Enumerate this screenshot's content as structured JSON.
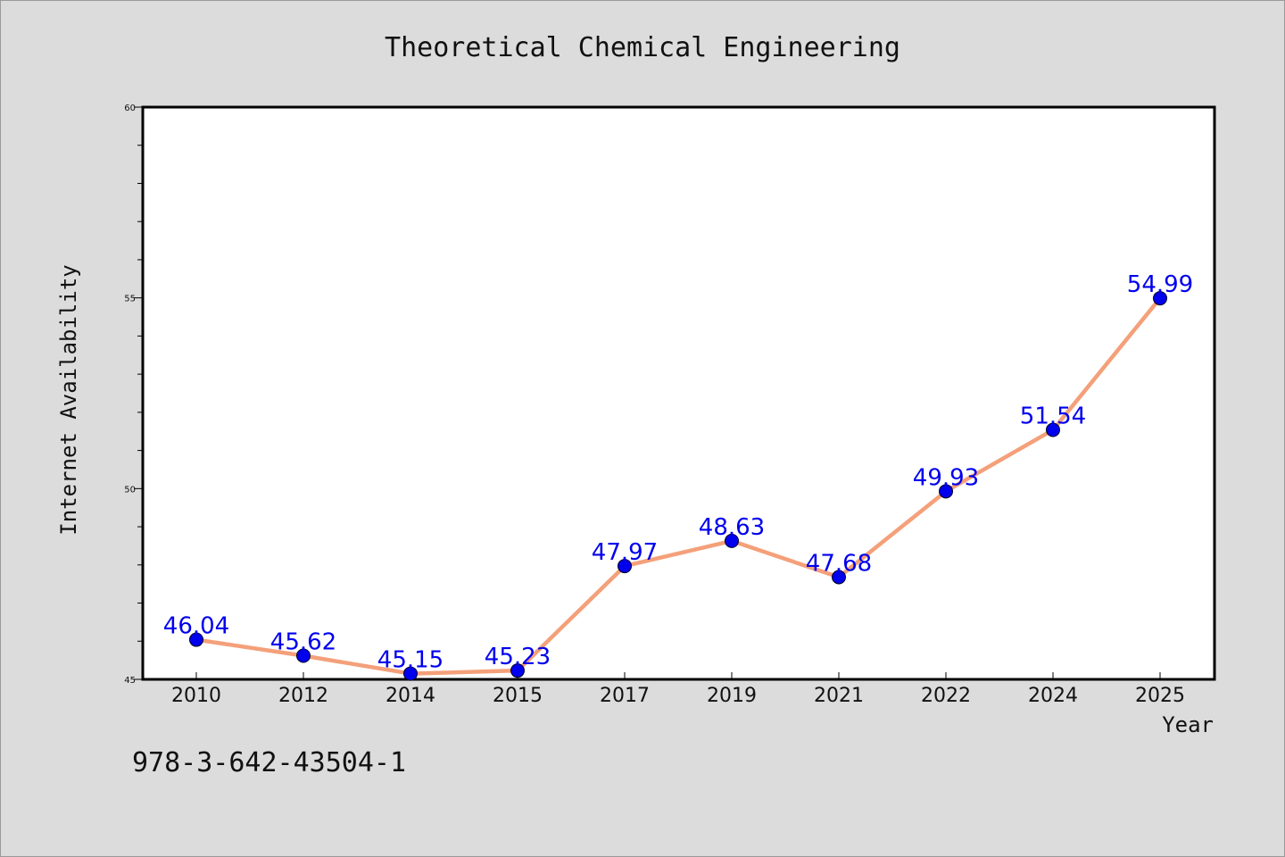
{
  "chart_data": {
    "type": "line",
    "title": "Theoretical Chemical Engineering",
    "xlabel": "Year",
    "ylabel": "Internet Availability",
    "categories": [
      "2010",
      "2012",
      "2014",
      "2015",
      "2017",
      "2019",
      "2021",
      "2022",
      "2024",
      "2025"
    ],
    "values": [
      46.04,
      45.62,
      45.15,
      45.23,
      47.97,
      48.63,
      47.68,
      49.93,
      51.54,
      54.99
    ],
    "data_labels": [
      "46.04",
      "45.62",
      "45.15",
      "45.23",
      "47.97",
      "48.63",
      "47.68",
      "49.93",
      "51.54",
      "54.99"
    ],
    "ylim": [
      45,
      60
    ],
    "yticks": [
      "45",
      "50",
      "55",
      "60"
    ],
    "grid": false,
    "legend": "none",
    "line_color": "#f4a07a",
    "marker_color": "#0000ee",
    "label_color": "#0000ee"
  },
  "footnote": "978-3-642-43504-1"
}
